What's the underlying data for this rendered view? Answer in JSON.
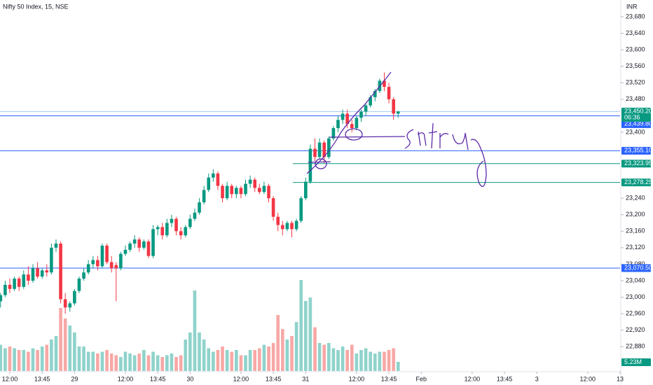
{
  "chart_data": {
    "type": "candlestick",
    "title": "Nifty 50 Index, 15, NSE",
    "currency": "INR",
    "countdown": "06:36",
    "up_color": "#089981",
    "down_color": "#f23645",
    "volume_up_color": "#8fd3cb",
    "volume_down_color": "#f7a8a6",
    "open": [
      22990,
      23005,
      23030,
      23020,
      23045,
      23025,
      23055,
      23040,
      23070,
      23050,
      23065,
      23060,
      23120,
      23130,
      22995,
      22975,
      22985,
      23015,
      23045,
      23060,
      23080,
      23090,
      23075,
      23125,
      23085,
      23078,
      23070,
      23105,
      23115,
      23130,
      23140,
      23120,
      23135,
      23100,
      23165,
      23170,
      23150,
      23180,
      23190,
      23160,
      23150,
      23170,
      23190,
      23205,
      23230,
      23260,
      23290,
      23300,
      23270,
      23240,
      23270,
      23250,
      23265,
      23250,
      23275,
      23285,
      23265,
      23255,
      23270,
      23240,
      23195,
      23175,
      23165,
      23180,
      23165,
      23185,
      23240,
      23280,
      23360,
      23340,
      23375,
      23340,
      23385,
      23410,
      23430,
      23445,
      23420,
      23410,
      23435,
      23450,
      23465,
      23485,
      23500,
      23525,
      23510,
      23480,
      23445
    ],
    "high": [
      23010,
      23040,
      23045,
      23050,
      23050,
      23065,
      23075,
      23080,
      23085,
      23070,
      23080,
      23130,
      23140,
      23135,
      23010,
      22990,
      23020,
      23050,
      23070,
      23090,
      23100,
      23100,
      23130,
      23130,
      23100,
      23085,
      23110,
      23125,
      23135,
      23150,
      23145,
      23140,
      23140,
      23175,
      23175,
      23180,
      23190,
      23200,
      23195,
      23170,
      23175,
      23200,
      23215,
      23240,
      23270,
      23300,
      23310,
      23305,
      23275,
      23280,
      23275,
      23270,
      23270,
      23285,
      23295,
      23290,
      23275,
      23280,
      23275,
      23245,
      23205,
      23185,
      23185,
      23185,
      23190,
      23245,
      23290,
      23370,
      23385,
      23385,
      23380,
      23390,
      23415,
      23440,
      23455,
      23455,
      23430,
      23440,
      23455,
      23470,
      23490,
      23505,
      23530,
      23545,
      23520,
      23485,
      23452
    ],
    "low": [
      22975,
      23000,
      23010,
      23015,
      23015,
      23020,
      23030,
      23035,
      23045,
      23045,
      23050,
      23055,
      23110,
      22985,
      22960,
      22965,
      22980,
      23010,
      23040,
      23055,
      23070,
      23065,
      23070,
      23080,
      23060,
      22990,
      23065,
      23100,
      23110,
      23120,
      23110,
      23115,
      23095,
      23095,
      23150,
      23140,
      23145,
      23170,
      23150,
      23140,
      23145,
      23165,
      23185,
      23200,
      23225,
      23255,
      23280,
      23260,
      23230,
      23235,
      23240,
      23240,
      23240,
      23245,
      23265,
      23255,
      23250,
      23250,
      23230,
      23185,
      23160,
      23150,
      23160,
      23145,
      23160,
      23180,
      23235,
      23275,
      23330,
      23335,
      23325,
      23335,
      23380,
      23400,
      23420,
      23410,
      23400,
      23405,
      23425,
      23440,
      23460,
      23475,
      23495,
      23500,
      23470,
      23430,
      23435
    ],
    "close": [
      23005,
      23030,
      23020,
      23045,
      23025,
      23055,
      23040,
      23070,
      23050,
      23065,
      23060,
      23120,
      23130,
      22995,
      22975,
      22985,
      23015,
      23045,
      23060,
      23080,
      23090,
      23075,
      23125,
      23085,
      23070,
      23070,
      23105,
      23115,
      23130,
      23140,
      23120,
      23135,
      23100,
      23165,
      23170,
      23150,
      23180,
      23190,
      23160,
      23150,
      23170,
      23190,
      23205,
      23230,
      23260,
      23290,
      23300,
      23270,
      23240,
      23270,
      23250,
      23265,
      23250,
      23275,
      23285,
      23265,
      23255,
      23270,
      23240,
      23195,
      23175,
      23165,
      23180,
      23165,
      23185,
      23240,
      23280,
      23360,
      23340,
      23375,
      23340,
      23385,
      23410,
      23430,
      23445,
      23420,
      23410,
      23435,
      23450,
      23465,
      23485,
      23500,
      23525,
      23510,
      23480,
      23445,
      23450.2
    ],
    "volume": [
      15,
      13,
      14,
      13,
      12,
      12,
      11,
      13,
      12,
      14,
      15,
      18,
      20,
      36,
      30,
      26,
      22,
      14,
      14,
      11,
      11,
      10,
      11,
      12,
      10,
      9,
      8,
      11,
      10,
      9,
      10,
      12,
      9,
      11,
      9,
      8,
      9,
      10,
      8,
      9,
      18,
      22,
      46,
      22,
      18,
      13,
      11,
      12,
      14,
      12,
      11,
      12,
      9,
      9,
      12,
      12,
      13,
      15,
      14,
      16,
      32,
      24,
      18,
      20,
      28,
      52,
      40,
      42,
      25,
      16,
      15,
      16,
      13,
      12,
      14,
      12,
      15,
      10,
      12,
      13,
      11,
      10,
      11,
      11,
      12,
      13,
      5.23
    ],
    "volume_last_label": "5.23M",
    "vlim": [
      0,
      212
    ],
    "xlim": [
      -0.12,
      134
    ],
    "ylim": [
      22804,
      23720.7
    ],
    "xticks": [
      {
        "value": 2,
        "label": "12:00"
      },
      {
        "value": 9,
        "label": "13:45"
      },
      {
        "value": 16,
        "label": "29"
      },
      {
        "value": 27,
        "label": "12:00"
      },
      {
        "value": 34,
        "label": "13:45"
      },
      {
        "value": 41,
        "label": "30"
      },
      {
        "value": 52,
        "label": "12:00"
      },
      {
        "value": 59,
        "label": "13:45"
      },
      {
        "value": 66,
        "label": "31"
      },
      {
        "value": 77,
        "label": "12:00"
      },
      {
        "value": 84,
        "label": "13:45"
      },
      {
        "value": 91,
        "label": "Feb"
      },
      {
        "value": 102,
        "label": "12:00"
      },
      {
        "value": 109,
        "label": "13:45"
      },
      {
        "value": 116,
        "label": "3"
      },
      {
        "value": 127,
        "label": "12:00"
      },
      {
        "value": 134,
        "label": "13"
      }
    ],
    "yticks": [
      {
        "value": 22880,
        "label": "22,880"
      },
      {
        "value": 22920,
        "label": "22,920"
      },
      {
        "value": 22960,
        "label": "22,960"
      },
      {
        "value": 23000,
        "label": "23,000"
      },
      {
        "value": 23040,
        "label": "23,040"
      },
      {
        "value": 23080,
        "label": "23,080"
      },
      {
        "value": 23120,
        "label": "23,120"
      },
      {
        "value": 23160,
        "label": "23,160"
      },
      {
        "value": 23200,
        "label": "23,200"
      },
      {
        "value": 23240,
        "label": "23,240"
      },
      {
        "value": 23400,
        "label": "23,400"
      },
      {
        "value": 23480,
        "label": "23,480"
      },
      {
        "value": 23520,
        "label": "23,520"
      },
      {
        "value": 23560,
        "label": "23,560"
      },
      {
        "value": 23600,
        "label": "23,600"
      },
      {
        "value": 23640,
        "label": "23,640"
      },
      {
        "value": 23680,
        "label": "23,680"
      }
    ],
    "last_price": {
      "value": 23450.2,
      "label": "23,450.20",
      "color": "#089981"
    },
    "price_levels": [
      {
        "value": 23439.8,
        "label": "23,439.80",
        "color": "#2962ff",
        "x_start": -0.12
      },
      {
        "value": 23355.1,
        "label": "23,355.10",
        "color": "#2962ff",
        "x_start": -0.12
      },
      {
        "value": 23323.95,
        "label": "23,323.95",
        "color": "#089981",
        "x_start": 63.2
      },
      {
        "value": 23278.25,
        "label": "23,278.25",
        "color": "#089981",
        "x_start": 63.2
      },
      {
        "value": 23070.5,
        "label": "23,070.50",
        "color": "#2962ff",
        "x_start": -0.12
      }
    ]
  }
}
